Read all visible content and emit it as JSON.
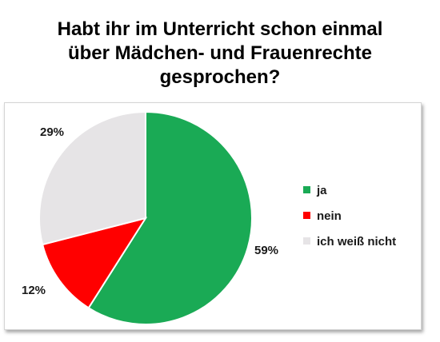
{
  "title_lines": [
    "Habt ihr im Unterricht schon einmal",
    "über Mädchen- und Frauenrechte",
    "gesprochen?"
  ],
  "chart_data": {
    "type": "pie",
    "title": "Habt ihr im Unterricht schon einmal über Mädchen- und Frauenrechte gesprochen?",
    "categories": [
      "ja",
      "nein",
      "ich weiß nicht"
    ],
    "values": [
      59,
      12,
      29
    ],
    "labels": [
      "59%",
      "12%",
      "29%"
    ],
    "colors": [
      "#1aaa55",
      "#ff0000",
      "#e6e4e6"
    ],
    "legend_position": "right",
    "start": "top, clockwise"
  }
}
